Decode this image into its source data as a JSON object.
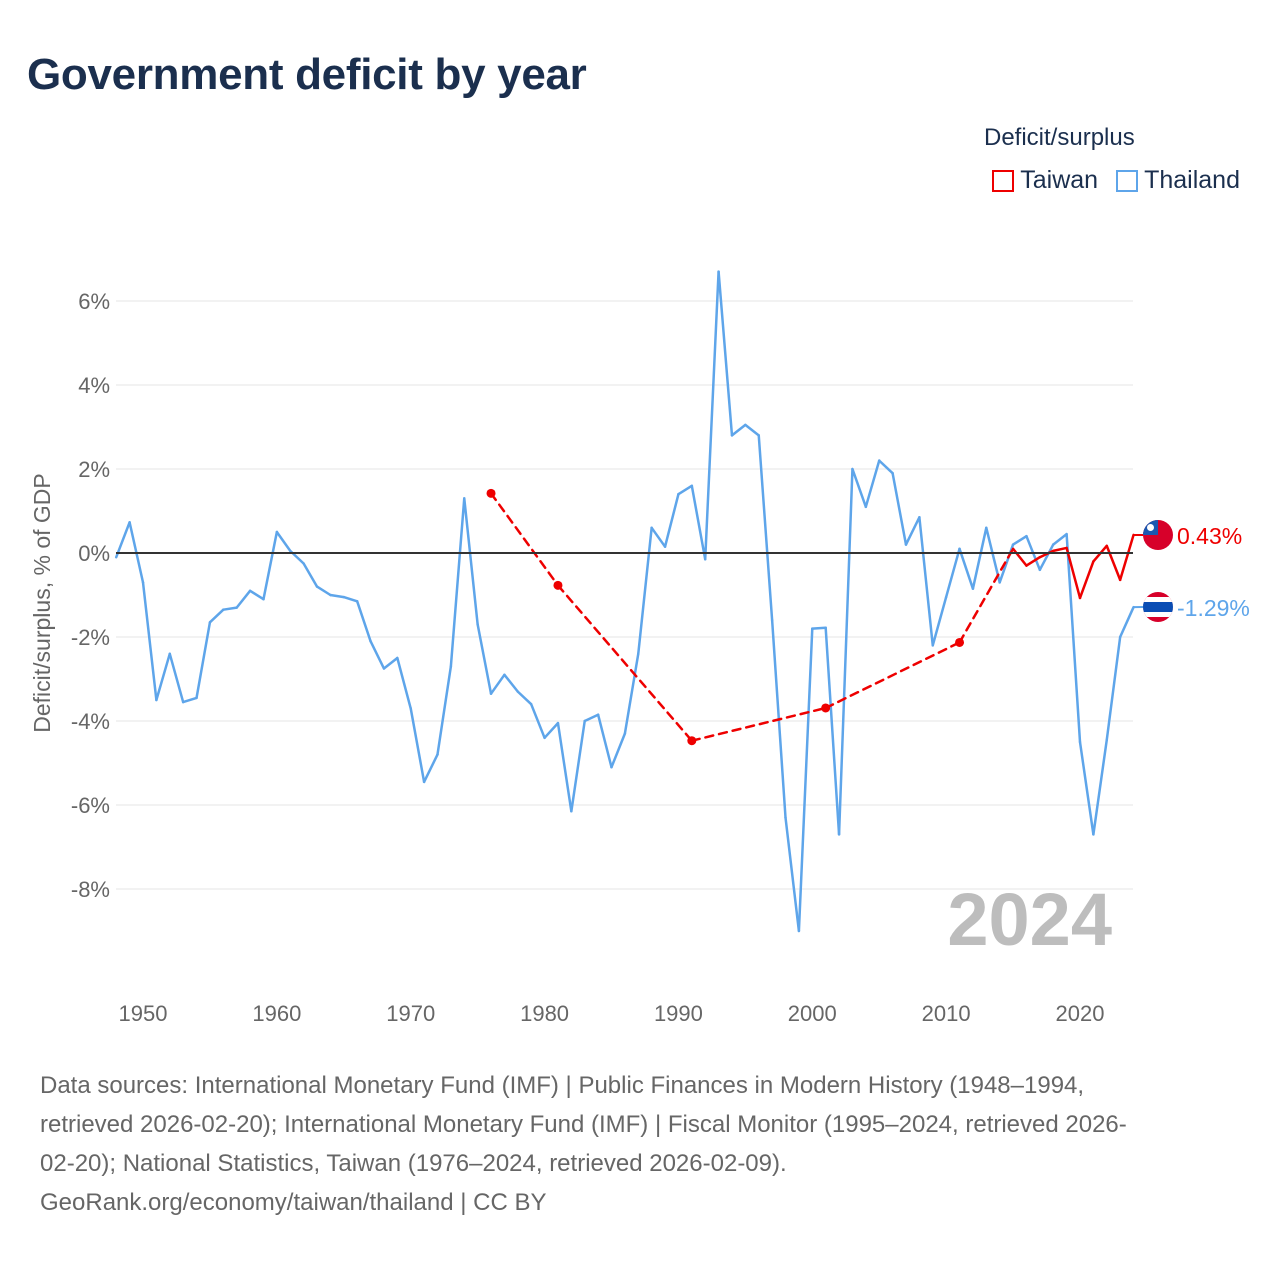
{
  "title": "Government deficit by year",
  "legend": {
    "title": "Deficit/surplus",
    "items": [
      {
        "label": "Taiwan",
        "color": "#ee0000"
      },
      {
        "label": "Thailand",
        "color": "#5ea5ea"
      }
    ]
  },
  "chart_data": {
    "type": "line",
    "title": "Government deficit by year",
    "xlabel": "",
    "ylabel": "Deficit/surplus, % of GDP",
    "xlim": [
      1948,
      2024
    ],
    "ylim": [
      -9.2,
      6.8
    ],
    "x_ticks": [
      1950,
      1960,
      1970,
      1980,
      1990,
      2000,
      2010,
      2020
    ],
    "x_tick_labels": [
      "1950",
      "1960",
      "1970",
      "1980",
      "1990",
      "2000",
      "2010",
      "2020"
    ],
    "y_ticks": [
      6,
      4,
      2,
      0,
      -2,
      -4,
      -6,
      -8
    ],
    "y_tick_labels": [
      "6%",
      "4%",
      "2%",
      "0%",
      "-2%",
      "-4%",
      "-6%",
      "-8%"
    ],
    "grid": true,
    "legend_position": "top-right",
    "current_year_label": "2024",
    "series": [
      {
        "name": "Taiwan",
        "color": "#ee0000",
        "end_label": "0.43%",
        "points": [
          [
            1976,
            1.42
          ],
          [
            1981,
            -0.77
          ],
          [
            1991,
            -4.47
          ],
          [
            2001,
            -3.69
          ],
          [
            2011,
            -2.13
          ],
          [
            2015,
            0.1
          ],
          [
            2016,
            -0.3
          ],
          [
            2017,
            -0.1
          ],
          [
            2018,
            0.05
          ],
          [
            2019,
            0.12
          ],
          [
            2020,
            -1.07
          ],
          [
            2021,
            -0.2
          ],
          [
            2022,
            0.17
          ],
          [
            2023,
            -0.64
          ],
          [
            2024,
            0.43
          ]
        ]
      },
      {
        "name": "Thailand",
        "color": "#5ea5ea",
        "end_label": "-1.29%",
        "points": [
          [
            1948,
            -0.1
          ],
          [
            1949,
            0.73
          ],
          [
            1950,
            -0.7
          ],
          [
            1951,
            -3.5
          ],
          [
            1952,
            -2.4
          ],
          [
            1953,
            -3.55
          ],
          [
            1954,
            -3.45
          ],
          [
            1955,
            -1.65
          ],
          [
            1956,
            -1.35
          ],
          [
            1957,
            -1.3
          ],
          [
            1958,
            -0.9
          ],
          [
            1959,
            -1.1
          ],
          [
            1960,
            0.5
          ],
          [
            1961,
            0.05
          ],
          [
            1962,
            -0.25
          ],
          [
            1963,
            -0.8
          ],
          [
            1964,
            -1.0
          ],
          [
            1965,
            -1.05
          ],
          [
            1966,
            -1.15
          ],
          [
            1967,
            -2.1
          ],
          [
            1968,
            -2.75
          ],
          [
            1969,
            -2.5
          ],
          [
            1970,
            -3.7
          ],
          [
            1971,
            -5.45
          ],
          [
            1972,
            -4.8
          ],
          [
            1973,
            -2.7
          ],
          [
            1974,
            1.3
          ],
          [
            1975,
            -1.7
          ],
          [
            1976,
            -3.35
          ],
          [
            1977,
            -2.9
          ],
          [
            1978,
            -3.3
          ],
          [
            1979,
            -3.6
          ],
          [
            1980,
            -4.4
          ],
          [
            1981,
            -4.05
          ],
          [
            1982,
            -6.15
          ],
          [
            1983,
            -4.0
          ],
          [
            1984,
            -3.85
          ],
          [
            1985,
            -5.1
          ],
          [
            1986,
            -4.3
          ],
          [
            1987,
            -2.4
          ],
          [
            1988,
            0.6
          ],
          [
            1989,
            0.15
          ],
          [
            1990,
            1.4
          ],
          [
            1991,
            1.6
          ],
          [
            1992,
            -0.15
          ],
          [
            1993,
            6.7
          ],
          [
            1994,
            2.8
          ],
          [
            1995,
            3.05
          ],
          [
            1996,
            2.8
          ],
          [
            1997,
            -1.6
          ],
          [
            1998,
            -6.3
          ],
          [
            1999,
            -9.0
          ],
          [
            2000,
            -1.8
          ],
          [
            2001,
            -1.78
          ],
          [
            2002,
            -6.7
          ],
          [
            2003,
            2.0
          ],
          [
            2004,
            1.1
          ],
          [
            2005,
            2.2
          ],
          [
            2006,
            1.9
          ],
          [
            2007,
            0.2
          ],
          [
            2008,
            0.85
          ],
          [
            2009,
            -2.2
          ],
          [
            2010,
            -1.05
          ],
          [
            2011,
            0.1
          ],
          [
            2012,
            -0.85
          ],
          [
            2013,
            0.6
          ],
          [
            2014,
            -0.7
          ],
          [
            2015,
            0.2
          ],
          [
            2016,
            0.4
          ],
          [
            2017,
            -0.4
          ],
          [
            2018,
            0.2
          ],
          [
            2019,
            0.45
          ],
          [
            2020,
            -4.5
          ],
          [
            2021,
            -6.7
          ],
          [
            2022,
            -4.45
          ],
          [
            2023,
            -2.0
          ],
          [
            2024,
            -1.29
          ]
        ]
      }
    ]
  },
  "footer": {
    "line1": "Data sources: International Monetary Fund (IMF) | Public Finances in Modern History (1948–1994,",
    "line2": "retrieved 2026-02-20); International Monetary Fund (IMF) | Fiscal Monitor (1995–2024, retrieved 2026-",
    "line3": "02-20); National Statistics, Taiwan (1976–2024, retrieved 2026-02-09).",
    "line4": "GeoRank.org/economy/taiwan/thailand | CC BY"
  }
}
